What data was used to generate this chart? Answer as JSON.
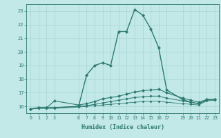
{
  "xlabel": "Humidex (Indice chaleur)",
  "bg_color": "#c2e8e8",
  "grid_color": "#a8d4d4",
  "line_color": "#2d7a70",
  "xlim": [
    -0.5,
    23.5
  ],
  "ylim": [
    15.5,
    23.5
  ],
  "xticks": [
    0,
    1,
    2,
    3,
    6,
    7,
    8,
    9,
    10,
    11,
    12,
    13,
    14,
    15,
    16,
    17,
    19,
    20,
    21,
    22,
    23
  ],
  "yticks": [
    16,
    17,
    18,
    19,
    20,
    21,
    22,
    23
  ],
  "series1": [
    [
      0,
      15.8
    ],
    [
      1,
      15.9
    ],
    [
      2,
      15.9
    ],
    [
      3,
      15.9
    ],
    [
      6,
      16.0
    ],
    [
      7,
      18.3
    ],
    [
      8,
      19.0
    ],
    [
      9,
      19.2
    ],
    [
      10,
      19.0
    ],
    [
      11,
      21.5
    ],
    [
      12,
      21.5
    ],
    [
      13,
      23.1
    ],
    [
      14,
      22.7
    ],
    [
      15,
      21.7
    ],
    [
      16,
      20.3
    ],
    [
      17,
      17.2
    ],
    [
      19,
      16.5
    ],
    [
      20,
      16.3
    ],
    [
      21,
      16.2
    ],
    [
      22,
      16.5
    ],
    [
      23,
      16.5
    ]
  ],
  "series2": [
    [
      0,
      15.8
    ],
    [
      1,
      15.9
    ],
    [
      2,
      15.9
    ],
    [
      3,
      16.4
    ],
    [
      6,
      16.1
    ],
    [
      7,
      16.2
    ],
    [
      8,
      16.35
    ],
    [
      9,
      16.55
    ],
    [
      10,
      16.65
    ],
    [
      11,
      16.75
    ],
    [
      12,
      16.9
    ],
    [
      13,
      17.05
    ],
    [
      14,
      17.15
    ],
    [
      15,
      17.2
    ],
    [
      16,
      17.25
    ],
    [
      17,
      17.0
    ],
    [
      19,
      16.6
    ],
    [
      20,
      16.45
    ],
    [
      21,
      16.3
    ],
    [
      22,
      16.5
    ],
    [
      23,
      16.5
    ]
  ],
  "series3": [
    [
      0,
      15.8
    ],
    [
      1,
      15.9
    ],
    [
      2,
      15.9
    ],
    [
      3,
      15.9
    ],
    [
      6,
      16.0
    ],
    [
      7,
      16.05
    ],
    [
      8,
      16.15
    ],
    [
      9,
      16.25
    ],
    [
      10,
      16.35
    ],
    [
      11,
      16.45
    ],
    [
      12,
      16.55
    ],
    [
      13,
      16.65
    ],
    [
      14,
      16.7
    ],
    [
      15,
      16.75
    ],
    [
      16,
      16.75
    ],
    [
      17,
      16.6
    ],
    [
      19,
      16.4
    ],
    [
      20,
      16.3
    ],
    [
      21,
      16.2
    ],
    [
      22,
      16.45
    ],
    [
      23,
      16.5
    ]
  ],
  "series4": [
    [
      0,
      15.8
    ],
    [
      1,
      15.85
    ],
    [
      2,
      15.85
    ],
    [
      3,
      15.85
    ],
    [
      6,
      15.95
    ],
    [
      7,
      16.0
    ],
    [
      8,
      16.05
    ],
    [
      9,
      16.1
    ],
    [
      10,
      16.15
    ],
    [
      11,
      16.2
    ],
    [
      12,
      16.25
    ],
    [
      13,
      16.3
    ],
    [
      14,
      16.35
    ],
    [
      15,
      16.38
    ],
    [
      16,
      16.38
    ],
    [
      17,
      16.3
    ],
    [
      19,
      16.2
    ],
    [
      20,
      16.15
    ],
    [
      21,
      16.1
    ],
    [
      22,
      16.4
    ],
    [
      23,
      16.45
    ]
  ]
}
